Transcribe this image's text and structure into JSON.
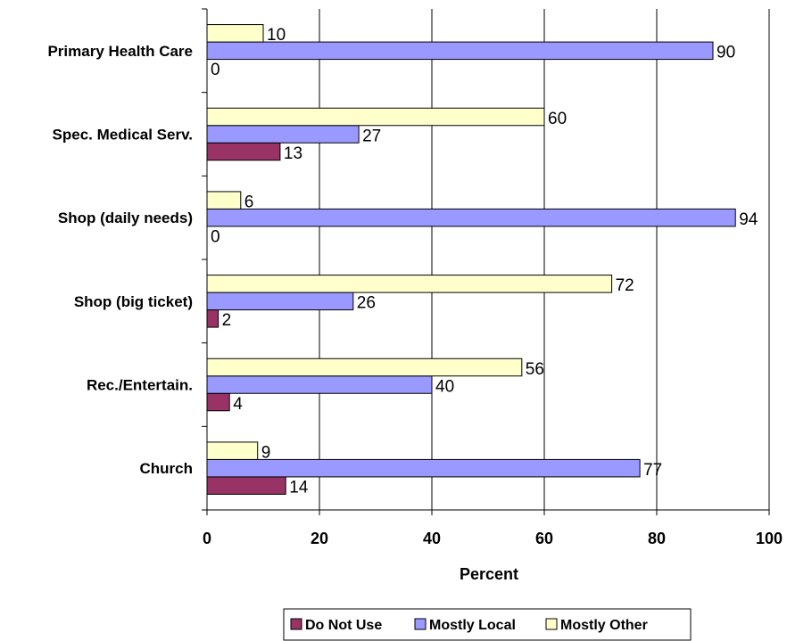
{
  "chart_data": {
    "type": "bar",
    "orientation": "horizontal",
    "categories": [
      "Primary Health Care",
      "Spec. Medical Serv.",
      "Shop (daily needs)",
      "Shop (big ticket)",
      "Rec./Entertain.",
      "Church"
    ],
    "series": [
      {
        "name": "Do Not Use",
        "color": "#993366",
        "values": [
          0,
          13,
          0,
          2,
          4,
          14
        ]
      },
      {
        "name": "Mostly Local",
        "color": "#9999FF",
        "values": [
          90,
          27,
          94,
          26,
          40,
          77
        ]
      },
      {
        "name": "Mostly Other",
        "color": "#FFFFCC",
        "values": [
          10,
          60,
          6,
          72,
          56,
          9
        ]
      }
    ],
    "xlabel": "Percent",
    "xlim": [
      0,
      100
    ],
    "xticks": [
      0,
      20,
      40,
      60,
      80,
      100
    ],
    "grid": true,
    "legend": "bottom",
    "data_labels": true
  }
}
